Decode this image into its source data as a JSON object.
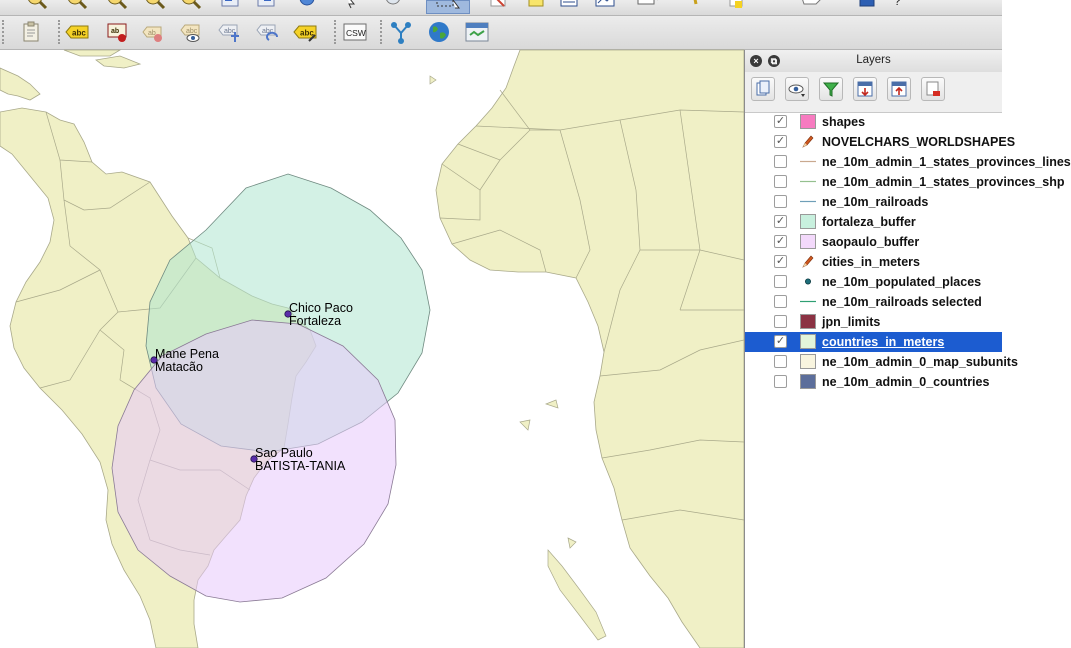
{
  "toolbar": {
    "csw_label": "CSW",
    "label_tool_text": "abc"
  },
  "map": {
    "labels": [
      {
        "id": "chico",
        "text": "Chico Paco"
      },
      {
        "id": "fortaleza",
        "text": "Fortaleza"
      },
      {
        "id": "mane",
        "text": "Mane Pena"
      },
      {
        "id": "matacao",
        "text": "Matacão"
      },
      {
        "id": "saopaulo",
        "text": "Sao Paulo"
      },
      {
        "id": "batista",
        "text": "BATISTA-TANIA"
      }
    ],
    "colors": {
      "land": "#f0f0c6",
      "land_stroke": "#a9a98a",
      "fortaleza_buffer": "#aee6cf",
      "saopaulo_buffer": "#e8c9fb",
      "point": "#5a2ca8"
    }
  },
  "layers_panel": {
    "title": "Layers",
    "items": [
      {
        "name": "shapes",
        "checked": true,
        "symbol": "fill",
        "color": "#f77bc0"
      },
      {
        "name": "NOVELCHARS_WORLDSHAPES",
        "checked": true,
        "symbol": "pencil",
        "color": "#d0581f"
      },
      {
        "name": "ne_10m_admin_1_states_provinces_lines",
        "checked": false,
        "symbol": "line",
        "color": "#c9a98f"
      },
      {
        "name": "ne_10m_admin_1_states_provinces_shp",
        "checked": false,
        "symbol": "line",
        "color": "#95c08f"
      },
      {
        "name": "ne_10m_railroads",
        "checked": false,
        "symbol": "line",
        "color": "#6f9fb8"
      },
      {
        "name": "fortaleza_buffer",
        "checked": true,
        "symbol": "fill",
        "color": "#c8f0de"
      },
      {
        "name": "saopaulo_buffer",
        "checked": true,
        "symbol": "fill",
        "color": "#f3d9fb"
      },
      {
        "name": "cities_in_meters",
        "checked": true,
        "symbol": "pencil",
        "color": "#d0581f"
      },
      {
        "name": "ne_10m_populated_places",
        "checked": false,
        "symbol": "point",
        "color": "#1e6f7b"
      },
      {
        "name": "ne_10m_railroads selected",
        "checked": false,
        "symbol": "line",
        "color": "#2f9f73"
      },
      {
        "name": "jpn_limits",
        "checked": false,
        "symbol": "fill",
        "color": "#8b3243"
      },
      {
        "name": "countries_in_meters",
        "checked": true,
        "symbol": "fill",
        "color": "#e3f4da",
        "selected": true
      },
      {
        "name": "ne_10m_admin_0_map_subunits",
        "checked": false,
        "symbol": "fill",
        "color": "#f9f5df"
      },
      {
        "name": "ne_10m_admin_0_countries",
        "checked": false,
        "symbol": "fill",
        "color": "#5c6e9b"
      }
    ]
  }
}
